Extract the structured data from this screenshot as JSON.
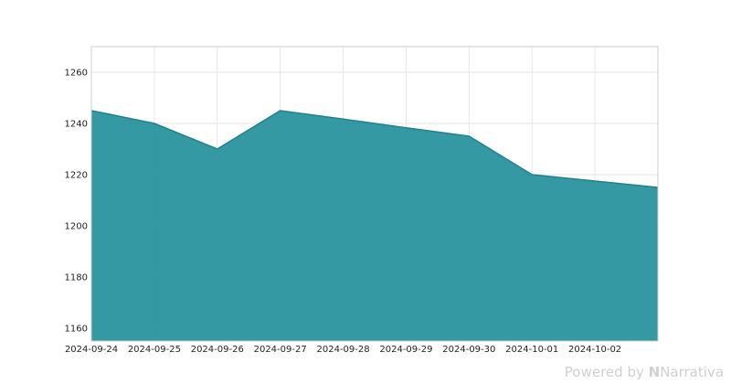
{
  "chart_data": {
    "type": "area",
    "x": [
      "2024-09-24",
      "2024-09-25",
      "2024-09-26",
      "2024-09-27",
      "2024-09-28",
      "2024-09-29",
      "2024-09-30",
      "2024-10-01",
      "2024-10-02",
      "2024-10-03"
    ],
    "series": [
      {
        "values": [
          1245,
          1240,
          1230,
          1245,
          1241.7,
          1238.3,
          1235,
          1220,
          1217.5,
          1215
        ]
      }
    ],
    "x_tick_labels": [
      "2024-09-24",
      "2024-09-25",
      "2024-09-26",
      "2024-09-27",
      "2024-09-28",
      "2024-09-29",
      "2024-09-30",
      "2024-10-01",
      "2024-10-02"
    ],
    "y_ticks": [
      1160,
      1180,
      1200,
      1220,
      1240,
      1260
    ],
    "ylim": [
      1155,
      1270
    ],
    "grid": true,
    "fill_color": "#2a939f",
    "line_color": "#1f8290",
    "title": "",
    "xlabel": "",
    "ylabel": ""
  },
  "footer": {
    "powered_by": "Powered by",
    "brand_mark": "N",
    "brand_name": "Narrativa"
  }
}
